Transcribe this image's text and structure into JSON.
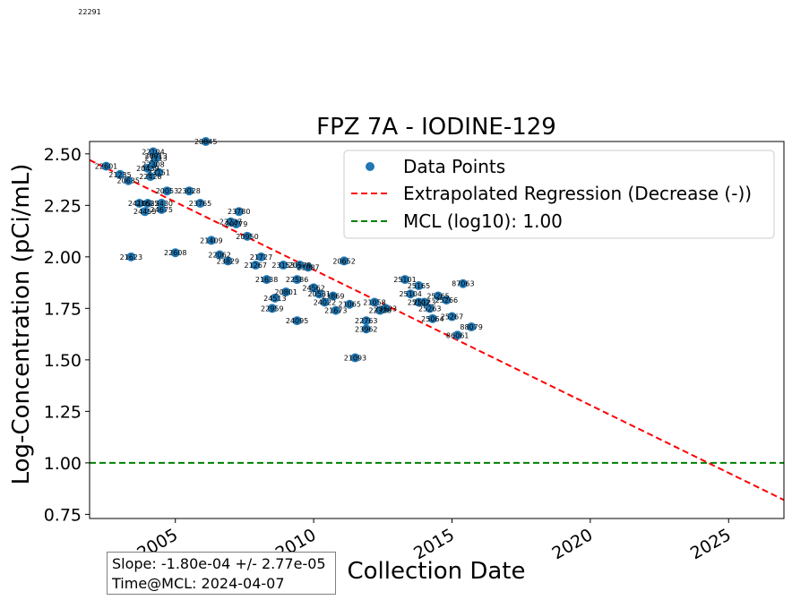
{
  "chart_data": {
    "type": "scatter",
    "title": "FPZ  7A - IODINE-129",
    "xlabel": "Collection Date",
    "ylabel": "Log-Concentration (pCi/mL)",
    "xlim": [
      2001.9,
      2027.0
    ],
    "ylim": [
      0.73,
      2.56
    ],
    "x_ticks": [
      2005,
      2010,
      2015,
      2020,
      2025
    ],
    "y_ticks": [
      0.75,
      1.0,
      1.25,
      1.5,
      1.75,
      2.0,
      2.25,
      2.5
    ],
    "y_tick_labels": [
      "0.75",
      "1.00",
      "1.25",
      "1.50",
      "1.75",
      "2.00",
      "2.25",
      "2.50"
    ],
    "grid": false,
    "legend": {
      "placement": "top-right",
      "entries": [
        {
          "label": "Data Points",
          "type": "marker",
          "color": "#1f77b4"
        },
        {
          "label": "Extrapolated Regression (Decrease (-))",
          "type": "dashed-line",
          "color": "#ff0000"
        },
        {
          "label": "MCL (log10): 1.00",
          "type": "dashed-line",
          "color": "#008000"
        }
      ]
    },
    "series": [
      {
        "name": "Data Points",
        "color": "#1f77b4",
        "points": [
          {
            "x": 2002.5,
            "y": 2.44,
            "label": "22601"
          },
          {
            "x": 2003.0,
            "y": 2.4,
            "label": "21235"
          },
          {
            "x": 2003.3,
            "y": 2.37,
            "label": "20635"
          },
          {
            "x": 2003.4,
            "y": 2.0,
            "label": "21623"
          },
          {
            "x": 2003.7,
            "y": 2.26,
            "label": "24105"
          },
          {
            "x": 2004.0,
            "y": 2.26,
            "label": "21635"
          },
          {
            "x": 2003.9,
            "y": 2.22,
            "label": "24455"
          },
          {
            "x": 2004.2,
            "y": 2.51,
            "label": "22104"
          },
          {
            "x": 2004.3,
            "y": 2.49,
            "label": "20013"
          },
          {
            "x": 2004.3,
            "y": 2.48,
            "label": "21113"
          },
          {
            "x": 2004.2,
            "y": 2.45,
            "label": "22308"
          },
          {
            "x": 2004.0,
            "y": 2.43,
            "label": "20439"
          },
          {
            "x": 2004.4,
            "y": 2.41,
            "label": "23751"
          },
          {
            "x": 2004.1,
            "y": 2.39,
            "label": "22428"
          },
          {
            "x": 2004.5,
            "y": 2.26,
            "label": "22430"
          },
          {
            "x": 2004.7,
            "y": 2.32,
            "label": "20053"
          },
          {
            "x": 2004.5,
            "y": 2.23,
            "label": "24675"
          },
          {
            "x": 2005.0,
            "y": 2.02,
            "label": "22608"
          },
          {
            "x": 2005.5,
            "y": 2.32,
            "label": "23028"
          },
          {
            "x": 2005.9,
            "y": 2.26,
            "label": "23765"
          },
          {
            "x": 2006.1,
            "y": 2.56,
            "label": "20845"
          },
          {
            "x": 2006.3,
            "y": 2.08,
            "label": "21409"
          },
          {
            "x": 2006.6,
            "y": 2.01,
            "label": "22062"
          },
          {
            "x": 2006.9,
            "y": 1.98,
            "label": "23829"
          },
          {
            "x": 2007.0,
            "y": 2.17,
            "label": "22227"
          },
          {
            "x": 2007.2,
            "y": 2.16,
            "label": "20779"
          },
          {
            "x": 2007.3,
            "y": 2.22,
            "label": "23780"
          },
          {
            "x": 2007.6,
            "y": 2.1,
            "label": "20950"
          },
          {
            "x": 2007.9,
            "y": 1.96,
            "label": "21267"
          },
          {
            "x": 2008.1,
            "y": 2.0,
            "label": "21727"
          },
          {
            "x": 2008.3,
            "y": 1.89,
            "label": "21638"
          },
          {
            "x": 2008.6,
            "y": 1.8,
            "label": "24513"
          },
          {
            "x": 2008.5,
            "y": 1.75,
            "label": "22959"
          },
          {
            "x": 2008.9,
            "y": 1.96,
            "label": "23153"
          },
          {
            "x": 2009.0,
            "y": 1.83,
            "label": "20801"
          },
          {
            "x": 2009.4,
            "y": 1.89,
            "label": "22586"
          },
          {
            "x": 2009.5,
            "y": 1.96,
            "label": "20578"
          },
          {
            "x": 2009.8,
            "y": 1.95,
            "label": "21087"
          },
          {
            "x": 2009.4,
            "y": 1.69,
            "label": "24095"
          },
          {
            "x": 2010.0,
            "y": 1.85,
            "label": "24562"
          },
          {
            "x": 2010.2,
            "y": 1.82,
            "label": "20531"
          },
          {
            "x": 2010.4,
            "y": 1.78,
            "label": "24022"
          },
          {
            "x": 2010.7,
            "y": 1.81,
            "label": "21869"
          },
          {
            "x": 2010.8,
            "y": 1.74,
            "label": "21673"
          },
          {
            "x": 2011.1,
            "y": 1.98,
            "label": "20652"
          },
          {
            "x": 2011.3,
            "y": 1.77,
            "label": "21065"
          },
          {
            "x": 2011.5,
            "y": 1.51,
            "label": "21093"
          },
          {
            "x": 2011.9,
            "y": 1.69,
            "label": "22763"
          },
          {
            "x": 2011.9,
            "y": 1.65,
            "label": "23962"
          },
          {
            "x": 2012.2,
            "y": 1.78,
            "label": "21058"
          },
          {
            "x": 2012.4,
            "y": 1.74,
            "label": "22328"
          },
          {
            "x": 2012.6,
            "y": 1.75,
            "label": "23633"
          },
          {
            "x": 2013.3,
            "y": 1.89,
            "label": "25101"
          },
          {
            "x": 2013.8,
            "y": 1.86,
            "label": "25165"
          },
          {
            "x": 2013.5,
            "y": 1.82,
            "label": "25104"
          },
          {
            "x": 2013.8,
            "y": 1.78,
            "label": "25102"
          },
          {
            "x": 2014.0,
            "y": 1.78,
            "label": "25123"
          },
          {
            "x": 2014.2,
            "y": 1.75,
            "label": "25263"
          },
          {
            "x": 2014.5,
            "y": 1.81,
            "label": "25265"
          },
          {
            "x": 2014.8,
            "y": 1.79,
            "label": "25266"
          },
          {
            "x": 2014.3,
            "y": 1.7,
            "label": "25064"
          },
          {
            "x": 2015.0,
            "y": 1.71,
            "label": "25267"
          },
          {
            "x": 2015.4,
            "y": 1.87,
            "label": "87063"
          },
          {
            "x": 2015.7,
            "y": 1.66,
            "label": "88079"
          },
          {
            "x": 2015.2,
            "y": 1.62,
            "label": "86061"
          }
        ]
      }
    ],
    "regression": {
      "x": [
        2001.9,
        2027.0
      ],
      "y": [
        2.47,
        0.82
      ],
      "color": "#ff0000",
      "style": "dashed"
    },
    "mcl": {
      "y": 1.0,
      "color": "#008000",
      "style": "dashed"
    },
    "stray_label": "22291"
  },
  "stats": {
    "slope": "Slope: -1.80e-04 +/- 2.77e-05",
    "time_at_mcl": "Time@MCL: 2024-04-07"
  }
}
